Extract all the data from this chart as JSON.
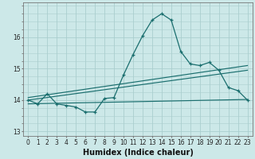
{
  "xlabel": "Humidex (Indice chaleur)",
  "bg_color": "#cce8e8",
  "grid_color": "#aacece",
  "line_color": "#1a6e6e",
  "hours": [
    0,
    1,
    2,
    3,
    4,
    5,
    6,
    7,
    8,
    9,
    10,
    11,
    12,
    13,
    14,
    15,
    16,
    17,
    18,
    19,
    20,
    21,
    22,
    23
  ],
  "main_data": [
    14.0,
    13.88,
    14.2,
    13.88,
    13.83,
    13.78,
    13.62,
    13.62,
    14.05,
    14.08,
    14.8,
    15.45,
    16.05,
    16.55,
    16.75,
    16.55,
    15.55,
    15.15,
    15.1,
    15.2,
    14.95,
    14.4,
    14.3,
    14.0
  ],
  "line1_start_y": 13.88,
  "line1_end_y": 14.02,
  "line2_start_y": 14.0,
  "line2_end_y": 14.95,
  "line3_start_y": 14.08,
  "line3_end_y": 15.1,
  "ylim": [
    12.85,
    17.1
  ],
  "xlim": [
    -0.5,
    23.5
  ],
  "yticks": [
    13,
    14,
    15,
    16
  ],
  "xticks": [
    0,
    1,
    2,
    3,
    4,
    5,
    6,
    7,
    8,
    9,
    10,
    11,
    12,
    13,
    14,
    15,
    16,
    17,
    18,
    19,
    20,
    21,
    22,
    23
  ],
  "tick_fontsize": 5.5,
  "label_fontsize": 7.0
}
